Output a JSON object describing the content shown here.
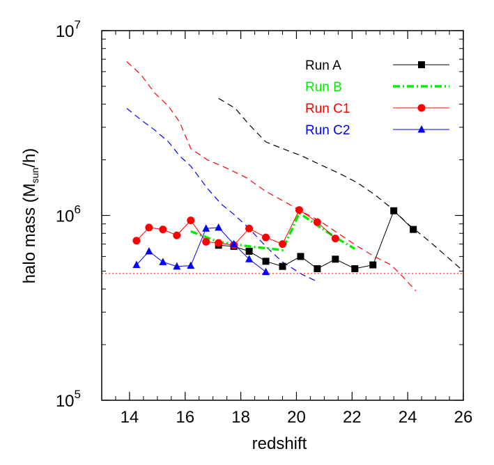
{
  "chart_data": {
    "type": "line",
    "xlabel": "redshift",
    "ylabel": {
      "prefix": "halo mass (M",
      "sub": "sun",
      "suffix": "/h)"
    },
    "xlim": [
      13,
      26
    ],
    "ylim": [
      100000,
      10000000
    ],
    "yscale": "log",
    "grid": false,
    "legend_position": "top-right",
    "x_ticks": [
      14,
      16,
      18,
      20,
      22,
      24,
      26
    ],
    "x_tick_labels": [
      "14",
      "16",
      "18",
      "20",
      "22",
      "24",
      "26"
    ],
    "y_ticks": [
      100000,
      1000000,
      10000000
    ],
    "y_tick_labels": [
      {
        "base": "10",
        "exp": "5"
      },
      {
        "base": "10",
        "exp": "6"
      },
      {
        "base": "10",
        "exp": "7"
      }
    ],
    "series": [
      {
        "name": "Run A",
        "color": "#000000",
        "marker": "square",
        "line_style": "solid",
        "x": [
          17.2,
          17.75,
          18.3,
          18.9,
          19.5,
          20.15,
          20.75,
          21.4,
          22.1,
          22.75,
          23.5,
          24.2
        ],
        "y": [
          690000,
          680000,
          640000,
          565000,
          530000,
          600000,
          515000,
          580000,
          515000,
          540000,
          1060000,
          840000
        ]
      },
      {
        "name": "Run B",
        "color": "#00ee00",
        "marker": "none",
        "line_style": "dashdot",
        "x": [
          16.2,
          17.2,
          18.3,
          19.5,
          20.1,
          21.4,
          22.1
        ],
        "y": [
          820000,
          720000,
          680000,
          650000,
          1030000,
          760000,
          660000
        ]
      },
      {
        "name": "Run C1",
        "color": "#ff0000",
        "marker": "circle",
        "line_style": "solid",
        "x": [
          14.25,
          14.7,
          15.2,
          15.7,
          16.2,
          16.75,
          17.2,
          17.75,
          18.3,
          18.9,
          19.5,
          20.1,
          20.75,
          21.4
        ],
        "y": [
          730000,
          860000,
          840000,
          780000,
          940000,
          720000,
          710000,
          690000,
          850000,
          760000,
          700000,
          1070000,
          920000,
          750000
        ]
      },
      {
        "name": "Run C2",
        "color": "#0000ff",
        "marker": "triangle",
        "line_style": "solid",
        "x": [
          14.25,
          14.7,
          15.2,
          15.7,
          16.2,
          16.75,
          17.2,
          17.75,
          18.3,
          18.9
        ],
        "y": [
          540000,
          640000,
          560000,
          530000,
          535000,
          850000,
          860000,
          700000,
          580000,
          495000
        ]
      }
    ],
    "reference_curves": [
      {
        "color": "#000000",
        "line_style": "dashed",
        "x": [
          17.2,
          17.8,
          18.3,
          18.9,
          19.5,
          20.2,
          20.8,
          21.5,
          22.2,
          22.8,
          23.4,
          24.0,
          24.8,
          25.4,
          26.0
        ],
        "y": [
          4300000,
          3800000,
          3100000,
          2500000,
          2300000,
          2100000,
          1900000,
          1700000,
          1500000,
          1300000,
          1100000,
          900000,
          720000,
          600000,
          500000
        ]
      },
      {
        "color": "#ff0000",
        "line_style": "dashed",
        "x": [
          13.9,
          14.4,
          14.9,
          15.4,
          15.8,
          16.2,
          16.8,
          17.5,
          18.2,
          18.9,
          19.6,
          20.2,
          20.9,
          21.5,
          22.2,
          22.8,
          23.4,
          23.8,
          24.3
        ],
        "y": [
          6800000,
          5800000,
          4600000,
          3900000,
          3200000,
          2300000,
          2000000,
          1800000,
          1600000,
          1350000,
          1180000,
          1050000,
          920000,
          800000,
          680000,
          600000,
          540000,
          470000,
          390000
        ]
      },
      {
        "color": "#0000ff",
        "line_style": "dashed",
        "x": [
          13.9,
          14.4,
          14.9,
          15.4,
          15.8,
          16.2,
          16.8,
          17.3,
          17.8,
          18.3,
          18.9,
          19.5,
          20.2,
          20.8
        ],
        "y": [
          3800000,
          3300000,
          2900000,
          2500000,
          2100000,
          1850000,
          1400000,
          1150000,
          1000000,
          850000,
          680000,
          560000,
          480000,
          435000
        ]
      },
      {
        "color": "#ff0000",
        "line_style": "dotted",
        "x": [
          13,
          26
        ],
        "y": [
          485000,
          485000
        ]
      }
    ]
  }
}
